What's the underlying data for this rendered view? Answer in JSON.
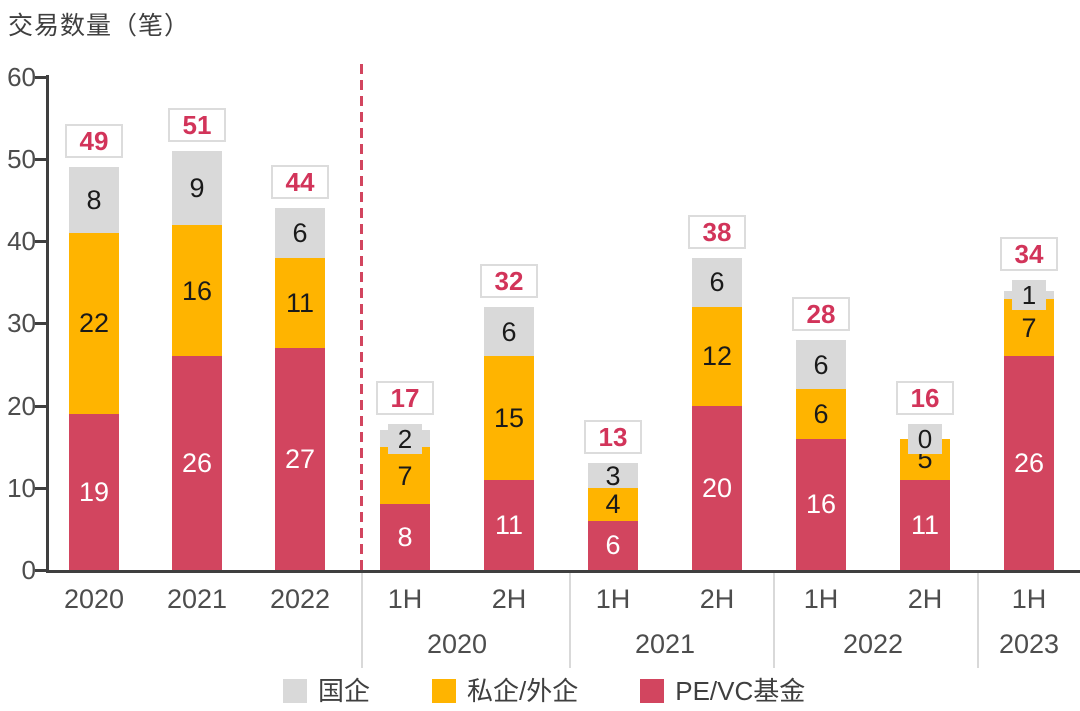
{
  "title": "交易数量（笔）",
  "colors": {
    "soe": "#D9D9D9",
    "private": "#FFB400",
    "pevc": "#D2455F",
    "total_text": "#D2345A",
    "axis": "#3F3F3F",
    "tick_text": "#4D4D4D",
    "separator": "#D9D9D9",
    "box_border": "#DCDCDC",
    "label_dark": "#1A1A1A",
    "label_light": "#FFFFFF",
    "dashed_divider": "#D2455F"
  },
  "chart_data": {
    "type": "bar",
    "stacked": true,
    "title": "交易数量（笔）",
    "xlabel": "",
    "ylabel": "交易数量（笔）",
    "ylim": [
      0,
      60
    ],
    "yticks": [
      0,
      10,
      20,
      30,
      40,
      50,
      60
    ],
    "grid": false,
    "legend_position": "bottom",
    "series_order_bottom_to_top": [
      "PE/VC基金",
      "私企/外企",
      "国企"
    ],
    "legend": [
      {
        "key": "soe",
        "label": "国企"
      },
      {
        "key": "private",
        "label": "私企/外企"
      },
      {
        "key": "pevc",
        "label": "PE/VC基金"
      }
    ],
    "bars": [
      {
        "label": "2020",
        "group": null,
        "pevc": 19,
        "private": 22,
        "soe": 8,
        "total": 49
      },
      {
        "label": "2021",
        "group": null,
        "pevc": 26,
        "private": 16,
        "soe": 9,
        "total": 51
      },
      {
        "label": "2022",
        "group": null,
        "pevc": 27,
        "private": 11,
        "soe": 6,
        "total": 44
      },
      {
        "label": "1H",
        "group": "2020",
        "pevc": 8,
        "private": 7,
        "soe": 2,
        "total": 17
      },
      {
        "label": "2H",
        "group": "2020",
        "pevc": 11,
        "private": 15,
        "soe": 6,
        "total": 32
      },
      {
        "label": "1H",
        "group": "2021",
        "pevc": 6,
        "private": 4,
        "soe": 3,
        "total": 13
      },
      {
        "label": "2H",
        "group": "2021",
        "pevc": 20,
        "private": 12,
        "soe": 6,
        "total": 38
      },
      {
        "label": "1H",
        "group": "2022",
        "pevc": 16,
        "private": 6,
        "soe": 6,
        "total": 28
      },
      {
        "label": "2H",
        "group": "2022",
        "pevc": 11,
        "private": 5,
        "soe": 0,
        "total": 16
      },
      {
        "label": "1H",
        "group": "2023",
        "pevc": 26,
        "private": 7,
        "soe": 1,
        "total": 34
      }
    ],
    "groups": [
      {
        "label": "2020"
      },
      {
        "label": "2021"
      },
      {
        "label": "2022"
      },
      {
        "label": "2023"
      }
    ],
    "annotations": {
      "divider_note": "dashed vertical line separates annual bars from half-year bars"
    }
  }
}
